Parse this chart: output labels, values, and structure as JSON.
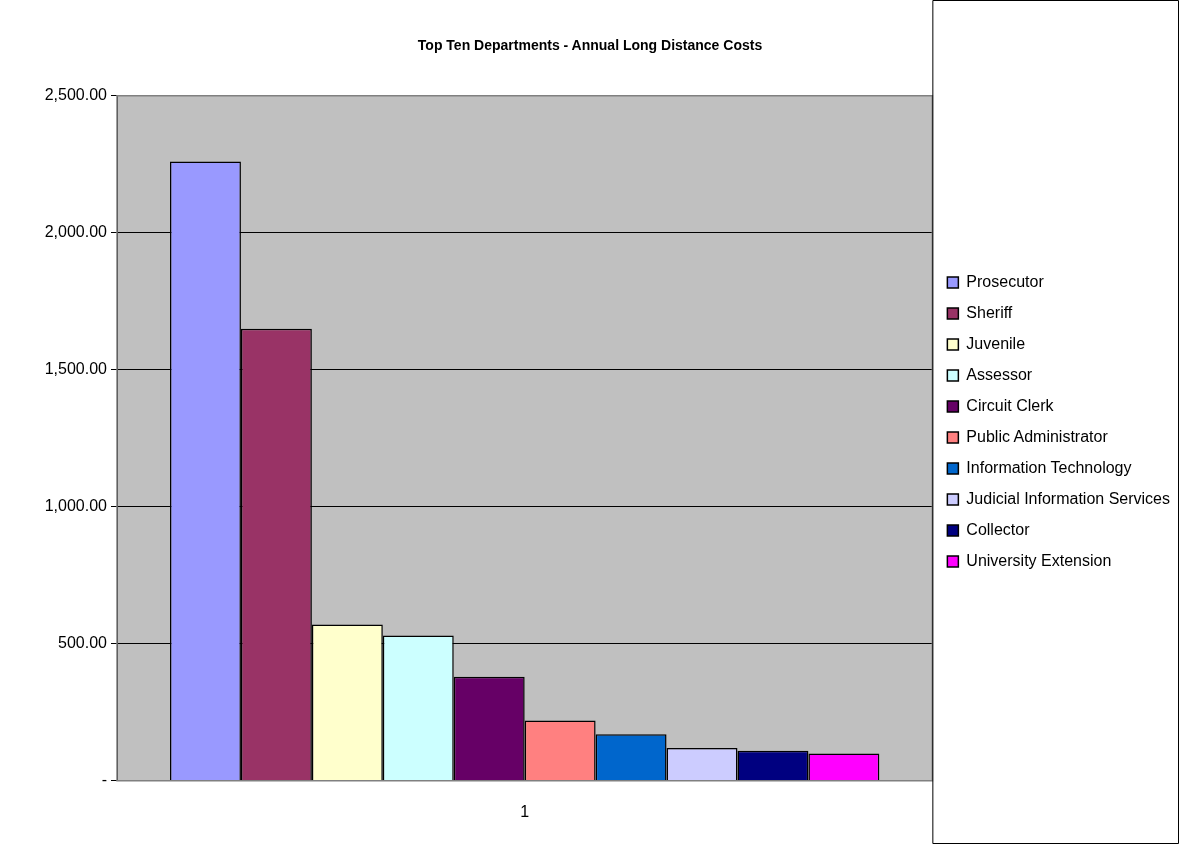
{
  "chart_data": {
    "type": "bar",
    "title": "Top Ten Departments - Annual Long Distance Costs",
    "categories": [
      "1"
    ],
    "series": [
      {
        "name": "Prosecutor",
        "color": "#9999ff",
        "values": [
          2260
        ]
      },
      {
        "name": "Sheriff",
        "color": "#993366",
        "values": [
          1650
        ]
      },
      {
        "name": "Juvenile",
        "color": "#ffffcc",
        "values": [
          570
        ]
      },
      {
        "name": "Assessor",
        "color": "#ccffff",
        "values": [
          530
        ]
      },
      {
        "name": "Circuit Clerk",
        "color": "#660066",
        "values": [
          380
        ]
      },
      {
        "name": "Public Administrator",
        "color": "#ff8080",
        "values": [
          220
        ]
      },
      {
        "name": "Information Technology",
        "color": "#0066cc",
        "values": [
          170
        ]
      },
      {
        "name": "Judicial Information Services",
        "color": "#ccccff",
        "values": [
          120
        ]
      },
      {
        "name": "Collector",
        "color": "#000080",
        "values": [
          110
        ]
      },
      {
        "name": "University Extension",
        "color": "#ff00ff",
        "values": [
          100
        ]
      }
    ],
    "ylim": [
      0,
      2500
    ],
    "yticks": [
      {
        "value": 0,
        "label": "-"
      },
      {
        "value": 500,
        "label": "500.00"
      },
      {
        "value": 1000,
        "label": "1,000.00"
      },
      {
        "value": 1500,
        "label": "1,500.00"
      },
      {
        "value": 2000,
        "label": "2,000.00"
      },
      {
        "value": 2500,
        "label": "2,500.00"
      }
    ],
    "grid": "y",
    "legend": "right"
  }
}
